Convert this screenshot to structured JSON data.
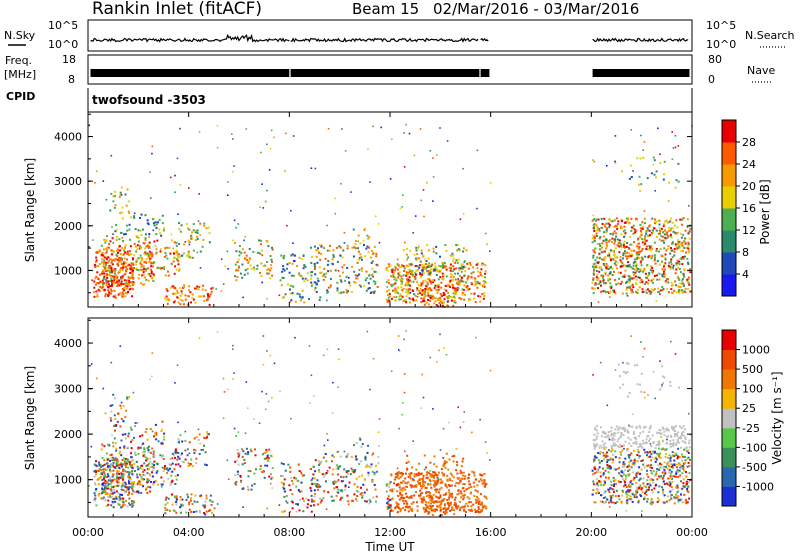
{
  "header": {
    "title": "Rankin Inlet (fitACF)",
    "beam": "Beam 15",
    "date_range": "02/Mar/2016 - 03/Mar/2016"
  },
  "strips": {
    "nsky_label": "N.Sky",
    "nsky_ticks": [
      "10^5",
      "10^0"
    ],
    "nsearch_label": "N.Search",
    "nsearch_ticks": [
      "10^5",
      "10^0"
    ],
    "freq_label_1": "Freq.",
    "freq_label_2": "[MHz]",
    "freq_ticks": [
      "18",
      "8"
    ],
    "nave_label": "Nave",
    "nave_ticks": [
      "80",
      "0"
    ],
    "cpid_label": "CPID",
    "cpid_value": "twofsound -3503"
  },
  "chart_data": [
    {
      "type": "heatmap",
      "name": "power",
      "ylabel": "Slant Range [km]",
      "xlabel": "",
      "yticks": [
        "1000",
        "2000",
        "3000",
        "4000"
      ],
      "ylim": [
        180,
        4550
      ],
      "xlim_hours": [
        0,
        24
      ],
      "colorbar_label": "Power [dB]",
      "colorbar_ticks": [
        "4",
        "8",
        "12",
        "16",
        "20",
        "24",
        "28"
      ],
      "colorbar_colors": [
        "#1a18f0",
        "#2048b8",
        "#2a8a6c",
        "#4caf50",
        "#e8d000",
        "#f79a00",
        "#ff5a00",
        "#e80000"
      ],
      "data_gap_hours": [
        16.0,
        20.0
      ]
    },
    {
      "type": "heatmap",
      "name": "velocity",
      "ylabel": "Slant Range [km]",
      "xlabel": "Time UT",
      "yticks": [
        "1000",
        "2000",
        "3000",
        "4000"
      ],
      "ylim": [
        180,
        4550
      ],
      "xlim_hours": [
        0,
        24
      ],
      "xticks": [
        "00:00",
        "04:00",
        "08:00",
        "12:00",
        "16:00",
        "20:00",
        "00:00"
      ],
      "colorbar_label": "Velocity [m s⁻¹]",
      "colorbar_ticks": [
        "1000",
        "500",
        "100",
        "25",
        "-25",
        "-100",
        "-500",
        "-1000"
      ],
      "colorbar_colors": [
        "#1a2fd6",
        "#2b66b0",
        "#3a8f5a",
        "#57c84a",
        "#c0c0c0",
        "#f5b400",
        "#f07800",
        "#ee4a00",
        "#e80000"
      ],
      "data_gap_hours": [
        16.0,
        20.0
      ]
    }
  ]
}
